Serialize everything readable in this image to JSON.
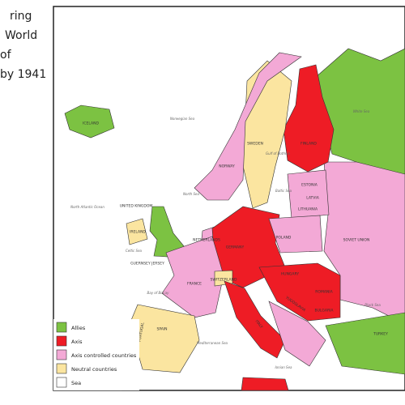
{
  "title_lines": [
    "ring",
    "World",
    "of",
    "by 1941"
  ],
  "legend": [
    "Allies",
    "Axis",
    "Axis controlled countries",
    "Neutral countries",
    "Sea"
  ],
  "labels": {
    "iceland": "ICELAND",
    "sweden": "SWEDEN",
    "finland": "FINLAND",
    "norway": "NORWAY",
    "uk": "UNITED KINGDOM",
    "ireland": "IRELAND",
    "estonia": "ESTONIA",
    "latvia": "LATVIA",
    "lithuania": "LITHUANIA",
    "netherlands": "NETHERLANDS",
    "poland": "POLAND",
    "germany": "GERMANY",
    "soviet": "SOVIET UNION",
    "france": "FRANCE",
    "switzerland": "SWITZERLAND",
    "spain": "SPAIN",
    "portugal": "PORTUGAL",
    "italy": "ITALY",
    "hungary": "HUNGARY",
    "romania": "ROMANIA",
    "bulgaria": "BULGARIA",
    "yugoslavia": "YUGOSLAVIA",
    "turkey": "TURKEY",
    "guernsey": "GUERNSEY JERSEY"
  },
  "seas": {
    "norwegian": "Norwegian Sea",
    "white": "White Sea",
    "bothnia": "Gulf of Bothnia",
    "atlantic": "North Atlantic Ocean",
    "north": "North Sea",
    "baltic": "Baltic Sea",
    "celtic": "Celtic Sea",
    "biscay": "Bay of Biscay",
    "black": "Black Sea",
    "med": "Mediterranean Sea",
    "ionian": "Ionian Sea"
  }
}
